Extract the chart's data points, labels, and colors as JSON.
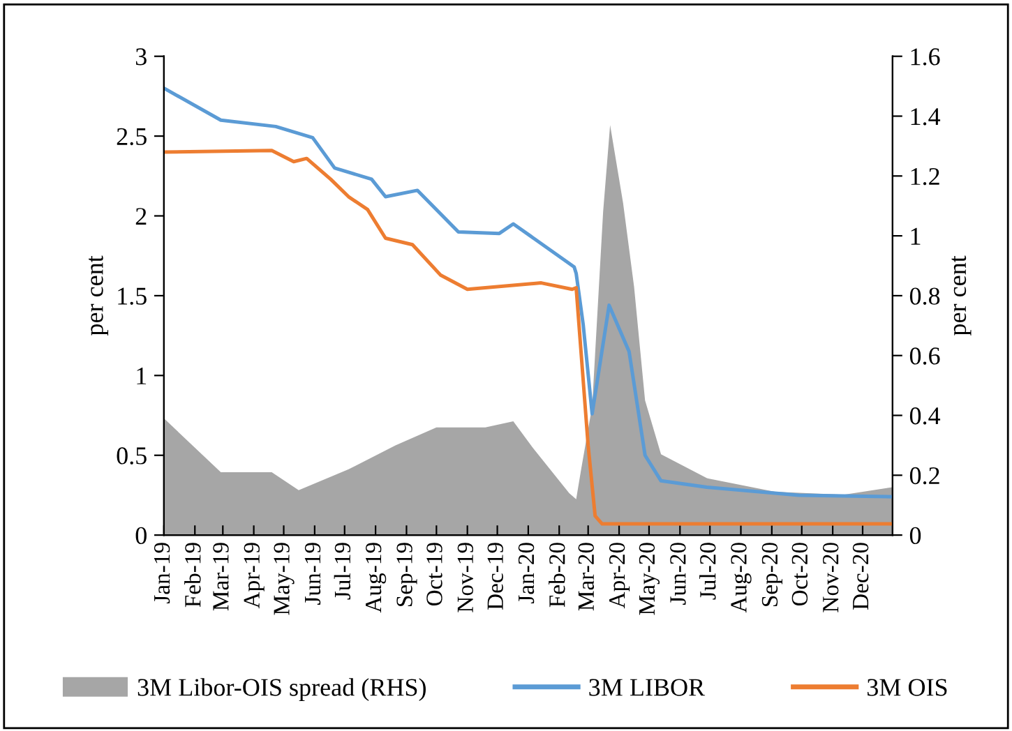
{
  "chart_data": {
    "type": "line",
    "ylabel": "per cent",
    "y2label": "per cent",
    "xlim": [
      "2019-01-01",
      "2020-12-31"
    ],
    "xticks": [
      {
        "value": "2019-01-01",
        "label": "Jan-19"
      },
      {
        "value": "2019-02-01",
        "label": "Feb-19"
      },
      {
        "value": "2019-03-01",
        "label": "Mar-19"
      },
      {
        "value": "2019-04-01",
        "label": "Apr-19"
      },
      {
        "value": "2019-05-01",
        "label": "May-19"
      },
      {
        "value": "2019-06-01",
        "label": "Jun-19"
      },
      {
        "value": "2019-07-01",
        "label": "Jul-19"
      },
      {
        "value": "2019-08-01",
        "label": "Aug-19"
      },
      {
        "value": "2019-09-01",
        "label": "Sep-19"
      },
      {
        "value": "2019-10-01",
        "label": "Oct-19"
      },
      {
        "value": "2019-11-01",
        "label": "Nov-19"
      },
      {
        "value": "2019-12-01",
        "label": "Dec-19"
      },
      {
        "value": "2020-01-01",
        "label": "Jan-20"
      },
      {
        "value": "2020-02-01",
        "label": "Feb-20"
      },
      {
        "value": "2020-03-01",
        "label": "Mar-20"
      },
      {
        "value": "2020-04-01",
        "label": "Apr-20"
      },
      {
        "value": "2020-05-01",
        "label": "May-20"
      },
      {
        "value": "2020-06-01",
        "label": "Jun-20"
      },
      {
        "value": "2020-07-01",
        "label": "Jul-20"
      },
      {
        "value": "2020-08-01",
        "label": "Aug-20"
      },
      {
        "value": "2020-09-01",
        "label": "Sep-20"
      },
      {
        "value": "2020-10-01",
        "label": "Oct-20"
      },
      {
        "value": "2020-11-01",
        "label": "Nov-20"
      },
      {
        "value": "2020-12-01",
        "label": "Dec-20"
      }
    ],
    "ylim": [
      0,
      3
    ],
    "yticks": [
      0,
      0.5,
      1,
      1.5,
      2,
      2.5,
      3
    ],
    "y2lim": [
      0,
      1.6
    ],
    "y2ticks": [
      0,
      0.2,
      0.4,
      0.6,
      0.8,
      1,
      1.2,
      1.4,
      1.6
    ],
    "legend": "bottom",
    "grid": false,
    "marker": "none",
    "line_style": "solid",
    "series": [
      {
        "name": "3M Libor-OIS spread (RHS)",
        "type": "area",
        "axis": "y2",
        "color": "#a6a6a6",
        "x": [
          "2019-01-01",
          "2019-02-27",
          "2019-04-19",
          "2019-05-16",
          "2019-07-05",
          "2019-08-21",
          "2019-10-01",
          "2019-11-19",
          "2019-12-17",
          "2020-01-06",
          "2020-02-11",
          "2020-02-18",
          "2020-02-23",
          "2020-03-05",
          "2020-03-16",
          "2020-03-23",
          "2020-04-05",
          "2020-04-16",
          "2020-04-27",
          "2020-05-13",
          "2020-06-28",
          "2020-09-04",
          "2020-11-12",
          "2020-12-31"
        ],
        "values": [
          0.39,
          0.21,
          0.21,
          0.15,
          0.22,
          0.3,
          0.36,
          0.36,
          0.38,
          0.29,
          0.14,
          0.12,
          0.22,
          0.43,
          1.08,
          1.37,
          1.11,
          0.83,
          0.45,
          0.27,
          0.19,
          0.145,
          0.135,
          0.16
        ]
      },
      {
        "name": "3M LIBOR",
        "axis": "y",
        "color": "#5b9bd5",
        "x": [
          "2019-01-01",
          "2019-02-27",
          "2019-04-23",
          "2019-05-30",
          "2019-06-21",
          "2019-07-28",
          "2019-08-11",
          "2019-09-12",
          "2019-10-23",
          "2019-12-03",
          "2019-12-17",
          "2020-02-16",
          "2020-02-18",
          "2020-02-25",
          "2020-03-05",
          "2020-03-22",
          "2020-04-11",
          "2020-04-27",
          "2020-05-13",
          "2020-06-28",
          "2020-09-28",
          "2020-12-31"
        ],
        "values": [
          2.8,
          2.6,
          2.56,
          2.49,
          2.3,
          2.23,
          2.12,
          2.16,
          1.9,
          1.89,
          1.95,
          1.68,
          1.64,
          1.32,
          0.76,
          1.44,
          1.15,
          0.5,
          0.34,
          0.3,
          0.25,
          0.24
        ]
      },
      {
        "name": "3M OIS",
        "axis": "y",
        "color": "#ed7d31",
        "x": [
          "2019-01-01",
          "2019-04-19",
          "2019-05-11",
          "2019-05-24",
          "2019-06-17",
          "2019-07-05",
          "2019-07-24",
          "2019-08-11",
          "2019-09-07",
          "2019-10-05",
          "2019-11-01",
          "2020-01-14",
          "2020-02-14",
          "2020-02-18",
          "2020-03-01",
          "2020-03-08",
          "2020-03-15",
          "2020-12-31"
        ],
        "values": [
          2.4,
          2.41,
          2.34,
          2.36,
          2.23,
          2.12,
          2.04,
          1.86,
          1.82,
          1.63,
          1.54,
          1.58,
          1.54,
          1.55,
          0.56,
          0.12,
          0.07,
          0.07
        ]
      }
    ]
  }
}
